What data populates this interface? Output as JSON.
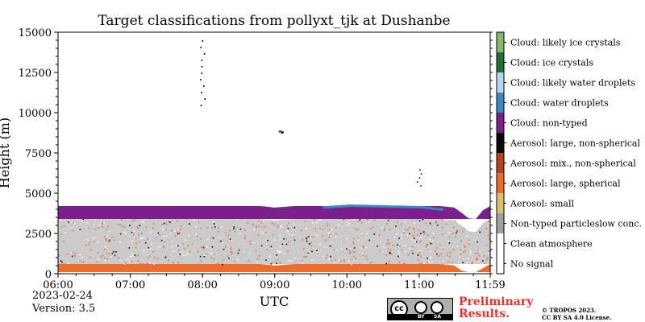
{
  "chart_data": {
    "type": "heatmap",
    "title": "Target classifications from pollyxt_tjk at Dushanbe",
    "xlabel": "UTC",
    "ylabel": "Height (m)",
    "xlim": [
      "06:00",
      "11:59"
    ],
    "ylim": [
      0,
      15000
    ],
    "x_ticks": [
      "06:00",
      "07:00",
      "08:00",
      "09:00",
      "10:00",
      "11:00",
      "11:59"
    ],
    "y_ticks": [
      0,
      2500,
      5000,
      7500,
      10000,
      12500,
      15000
    ],
    "legend_placement": "right colorbar",
    "classes": [
      {
        "label": "No signal",
        "color": "#ffffff"
      },
      {
        "label": "Clean atmosphere",
        "color": "#ffffff"
      },
      {
        "label": "Non-typed particleslow conc.",
        "color": "#a0a0a0"
      },
      {
        "label": "Aerosol: small",
        "color": "#d9c26f"
      },
      {
        "label": "Aerosol: large, spherical",
        "color": "#ef6c2f"
      },
      {
        "label": "Aerosol: mix., non-spherical",
        "color": "#b5401e"
      },
      {
        "label": "Aerosol: large, non-spherical",
        "color": "#0a0a0a"
      },
      {
        "label": "Cloud: non-typed",
        "color": "#7a1f8c"
      },
      {
        "label": "Cloud: water droplets",
        "color": "#3e86c6"
      },
      {
        "label": "Cloud: likely water droplets",
        "color": "#b9d6ef"
      },
      {
        "label": "Cloud: ice crystals",
        "color": "#1f6e36"
      },
      {
        "label": "Cloud: likely ice crystals",
        "color": "#8ab86b"
      }
    ],
    "layers": [
      {
        "class": "Aerosol: large, spherical",
        "from_m": 100,
        "to_m": 600,
        "span": [
          "06:00",
          "11:59"
        ]
      },
      {
        "class": "Non-typed particleslow conc.",
        "from_m": 600,
        "to_m": 3400,
        "span": [
          "06:00",
          "11:59"
        ]
      },
      {
        "class": "Cloud: non-typed",
        "from_m": 3400,
        "to_m": 4200,
        "span": [
          "06:00",
          "11:59"
        ]
      }
    ],
    "top_profile_m": [
      [
        "06:00",
        3800
      ],
      [
        "06:30",
        3700
      ],
      [
        "07:00",
        3550
      ],
      [
        "07:30",
        3600
      ],
      [
        "08:00",
        4100
      ],
      [
        "08:30",
        3600
      ],
      [
        "09:00",
        3300
      ],
      [
        "09:30",
        3500
      ],
      [
        "10:00",
        3650
      ],
      [
        "10:30",
        3600
      ],
      [
        "11:00",
        3550
      ],
      [
        "11:30",
        3300
      ],
      [
        "11:45",
        2400
      ],
      [
        "11:59",
        3700
      ]
    ],
    "high_features": [
      {
        "class": "Aerosol: large, non-spherical",
        "time": "08:00",
        "from_m": 10500,
        "to_m": 14500
      },
      {
        "class": "Cloud: non-typed",
        "time": "11:00",
        "from_m": 5500,
        "to_m": 6500
      },
      {
        "class": "Aerosol: large, non-spherical",
        "time": "09:05",
        "from_m": 8800,
        "to_m": 8900
      }
    ]
  },
  "footer": {
    "date": "2023-02-24",
    "version": "Version: 3.5",
    "preliminary_line1": "Preliminary",
    "preliminary_line2": "Results.",
    "copyright_line1": "© TROPOS 2023.",
    "copyright_line2": "CC BY SA 4.0 License.",
    "cc_badge": {
      "icon": "creative-commons-icon",
      "strip_by": "BY",
      "strip_sa": "SA"
    }
  }
}
